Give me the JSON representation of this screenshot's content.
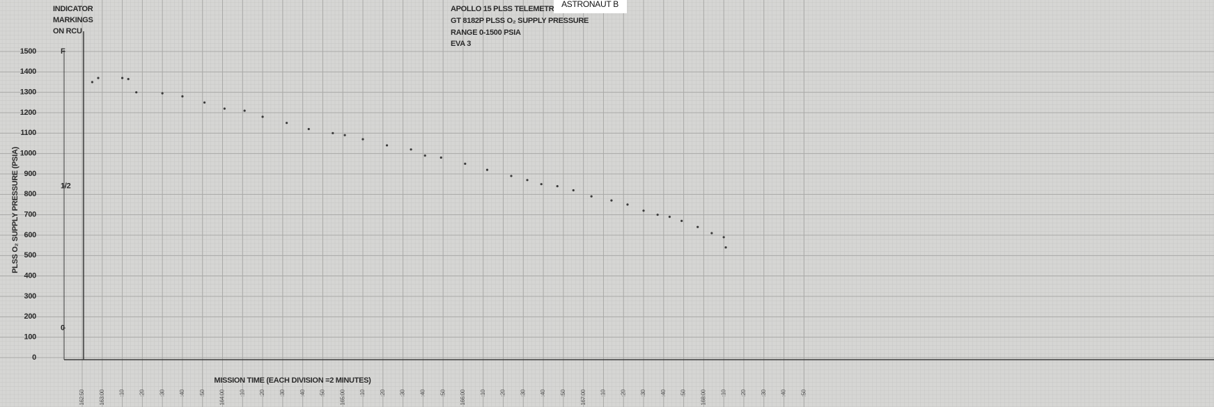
{
  "chart_data": {
    "type": "scatter",
    "title": "APOLLO 15 PLSS TELEMETRY",
    "subtitle": [
      "GT 8182P PLSS O₂ SUPPLY PRESSURE",
      "RANGE 0-1500 PSIA",
      "EVA 3"
    ],
    "badge": "ASTRONAUT B",
    "x_label": "MISSION TIME (EACH DIVISION =2 MINUTES)",
    "y_label": "PLSS O₂ SUPPLY PRESSURE (PSIA)",
    "indicator_title": [
      "INDICATOR",
      "MARKINGS",
      "ON RCU"
    ],
    "indicator_markings": [
      {
        "label": "F",
        "value": 1500
      },
      {
        "label": "1/2",
        "value": 840
      },
      {
        "label": "0",
        "value": 145
      }
    ],
    "grid": true,
    "xlim": [
      9770,
      10330
    ],
    "ylim": [
      0,
      1500
    ],
    "yticks": [
      0,
      100,
      200,
      300,
      400,
      500,
      600,
      700,
      800,
      900,
      1000,
      1100,
      1200,
      1300,
      1400,
      1500
    ],
    "xticks": [
      {
        "value": 9770,
        "label": "162:50"
      },
      {
        "value": 9780,
        "label": "163:00"
      },
      {
        "value": 9790,
        "label": ":10"
      },
      {
        "value": 9800,
        "label": ":20"
      },
      {
        "value": 9810,
        "label": ":30"
      },
      {
        "value": 9820,
        "label": ":40"
      },
      {
        "value": 9830,
        "label": ":50"
      },
      {
        "value": 9840,
        "label": "164:00"
      },
      {
        "value": 9850,
        "label": ":10"
      },
      {
        "value": 9860,
        "label": ":20"
      },
      {
        "value": 9870,
        "label": ":30"
      },
      {
        "value": 9880,
        "label": ":40"
      },
      {
        "value": 9890,
        "label": ":50"
      },
      {
        "value": 9900,
        "label": "165:00"
      },
      {
        "value": 9910,
        "label": ":10"
      },
      {
        "value": 9920,
        "label": ":20"
      },
      {
        "value": 9930,
        "label": ":30"
      },
      {
        "value": 9940,
        "label": ":40"
      },
      {
        "value": 9950,
        "label": ":50"
      },
      {
        "value": 9960,
        "label": "166:00"
      },
      {
        "value": 9970,
        "label": ":10"
      },
      {
        "value": 9980,
        "label": ":20"
      },
      {
        "value": 9990,
        "label": ":30"
      },
      {
        "value": 10000,
        "label": ":40"
      },
      {
        "value": 10010,
        "label": ":50"
      },
      {
        "value": 10020,
        "label": "167:00"
      },
      {
        "value": 10030,
        "label": ":10"
      },
      {
        "value": 10040,
        "label": ":20"
      },
      {
        "value": 10050,
        "label": ":30"
      },
      {
        "value": 10060,
        "label": ":40"
      },
      {
        "value": 10070,
        "label": ":50"
      },
      {
        "value": 10080,
        "label": "168:00"
      },
      {
        "value": 10090,
        "label": ":10"
      },
      {
        "value": 10100,
        "label": ":20"
      },
      {
        "value": 10110,
        "label": ":30"
      },
      {
        "value": 10120,
        "label": ":40"
      },
      {
        "value": 10130,
        "label": ":50"
      }
    ],
    "x": [
      9775,
      9778,
      9790,
      9793,
      9797,
      9810,
      9820,
      9831,
      9841,
      9851,
      9860,
      9872,
      9883,
      9895,
      9901,
      9910,
      9922,
      9934,
      9941,
      9949,
      9961,
      9972,
      9984,
      9992,
      9999,
      10007,
      10015,
      10024,
      10034,
      10042,
      10050,
      10057,
      10063,
      10069,
      10077,
      10084,
      10090,
      10091
    ],
    "series": [
      {
        "color": "#3a3a3a",
        "values": [
          1350,
          1370,
          1370,
          1365,
          1300,
          1295,
          1280,
          1250,
          1220,
          1210,
          1180,
          1150,
          1120,
          1100,
          1090,
          1070,
          1040,
          1020,
          990,
          980,
          950,
          920,
          890,
          870,
          850,
          840,
          820,
          790,
          770,
          750,
          720,
          700,
          690,
          670,
          640,
          610,
          590,
          540
        ]
      }
    ]
  }
}
